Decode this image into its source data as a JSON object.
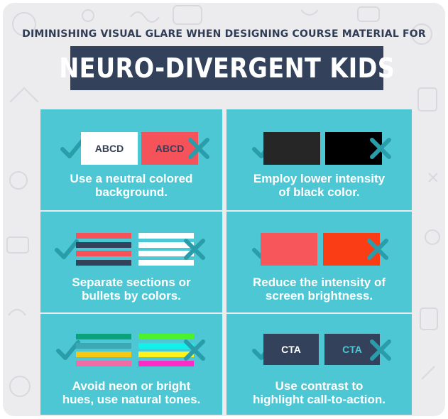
{
  "header": {
    "subtitle": "DIMINISHING VISUAL GLARE WHEN DESIGNING COURSE MATERIAL FOR",
    "title": "NEURO-DIVERGENT KIDS"
  },
  "tips": [
    {
      "caption_line1": "Use a neutral colored",
      "caption_line2": "background.",
      "good_label": "ABCD",
      "bad_label": "ABCD",
      "good_color": "#ffffff",
      "bad_color": "#f5525a"
    },
    {
      "caption_line1": "Employ lower intensity",
      "caption_line2": "of black color.",
      "good_color": "#262626",
      "bad_color": "#000000"
    },
    {
      "caption_line1": "Separate sections or",
      "caption_line2": "bullets by colors.",
      "good_colors": [
        "#f5525a",
        "#33415a",
        "#f5525a",
        "#33415a"
      ],
      "bad_colors": [
        "#ffffff",
        "#ffffff",
        "#ffffff",
        "#ffffff"
      ]
    },
    {
      "caption_line1": "Reduce the intensity of",
      "caption_line2": "screen brightness.",
      "good_color": "#f7575a",
      "bad_color": "#fb3d16"
    },
    {
      "caption_line1": "Avoid neon or bright",
      "caption_line2": "hues, use natural tones.",
      "good_colors": [
        "#0aa27d",
        "#3ca8b4",
        "#f5c814",
        "#f16ba4"
      ],
      "bad_colors": [
        "#4cf32a",
        "#13f0ec",
        "#fff21c",
        "#fb2cc8"
      ]
    },
    {
      "caption_line1": "Use contrast to",
      "caption_line2": "highlight call-to-action.",
      "good_label": "CTA",
      "bad_label": "CTA",
      "good_color": "#33415a",
      "bad_color": "#33415a",
      "good_text_color": "#ffffff",
      "bad_text_color": "#4ec7d5"
    }
  ],
  "icons": {
    "good": "checkmark-icon",
    "bad": "cross-icon"
  },
  "colors": {
    "panel": "#4ec7d5",
    "title_bg": "#33415a",
    "mark": "#2a9daa",
    "background": "#ececee"
  }
}
